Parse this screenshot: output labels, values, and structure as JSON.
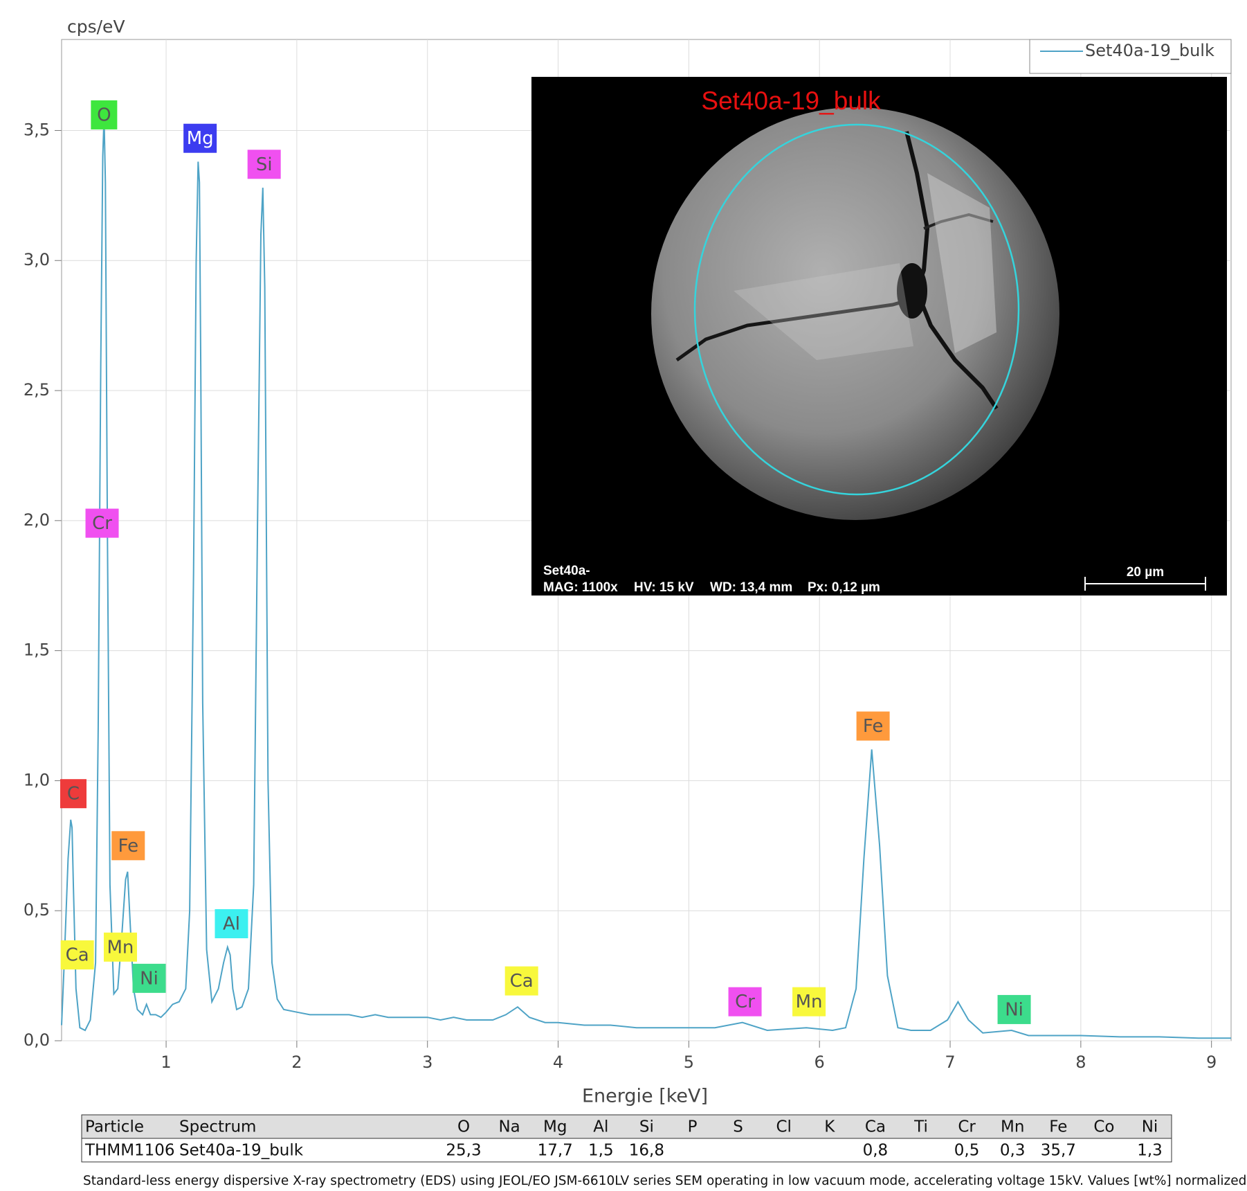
{
  "chart_data": {
    "type": "line",
    "ylabel": "cps/eV",
    "xlabel": "Energie [keV]",
    "xlim": [
      0.2,
      9.15
    ],
    "ylim": [
      0,
      3.85
    ],
    "xticks": [
      1,
      2,
      3,
      4,
      5,
      6,
      7,
      8,
      9
    ],
    "yticks": [
      {
        "value": 0,
        "label": "0,0"
      },
      {
        "value": 0.5,
        "label": "0,5"
      },
      {
        "value": 1,
        "label": "1,0"
      },
      {
        "value": 1.5,
        "label": "1,5"
      },
      {
        "value": 2,
        "label": "2,0"
      },
      {
        "value": 2.5,
        "label": "2,5"
      },
      {
        "value": 3,
        "label": "3,0"
      },
      {
        "value": 3.5,
        "label": "3,5"
      }
    ],
    "grid": true,
    "legend": "upper right",
    "x": [
      0.2,
      0.22,
      0.25,
      0.27,
      0.28,
      0.29,
      0.31,
      0.34,
      0.38,
      0.42,
      0.46,
      0.48,
      0.5,
      0.515,
      0.525,
      0.535,
      0.55,
      0.57,
      0.6,
      0.63,
      0.66,
      0.69,
      0.705,
      0.72,
      0.75,
      0.78,
      0.82,
      0.85,
      0.88,
      0.92,
      0.96,
      1.0,
      1.05,
      1.1,
      1.15,
      1.18,
      1.21,
      1.23,
      1.245,
      1.255,
      1.265,
      1.28,
      1.31,
      1.35,
      1.4,
      1.44,
      1.47,
      1.49,
      1.51,
      1.54,
      1.58,
      1.63,
      1.67,
      1.7,
      1.725,
      1.74,
      1.755,
      1.78,
      1.81,
      1.85,
      1.9,
      2.0,
      2.1,
      2.2,
      2.3,
      2.4,
      2.5,
      2.6,
      2.7,
      2.8,
      2.9,
      3.0,
      3.1,
      3.2,
      3.3,
      3.4,
      3.5,
      3.6,
      3.69,
      3.78,
      3.9,
      4.0,
      4.2,
      4.4,
      4.6,
      4.8,
      5.0,
      5.2,
      5.41,
      5.6,
      5.9,
      6.1,
      6.2,
      6.28,
      6.34,
      6.4,
      6.46,
      6.52,
      6.6,
      6.7,
      6.85,
      6.98,
      7.06,
      7.14,
      7.25,
      7.47,
      7.6,
      7.8,
      8.0,
      8.3,
      8.6,
      8.9,
      9.15
    ],
    "series": [
      {
        "name": "Set40a-19_bulk",
        "color": "#4ea3c6",
        "values": [
          0.06,
          0.3,
          0.7,
          0.85,
          0.82,
          0.6,
          0.2,
          0.05,
          0.04,
          0.08,
          0.3,
          1.2,
          2.6,
          3.4,
          3.55,
          3.3,
          2.0,
          0.6,
          0.18,
          0.2,
          0.4,
          0.62,
          0.65,
          0.5,
          0.2,
          0.12,
          0.1,
          0.14,
          0.1,
          0.1,
          0.09,
          0.11,
          0.14,
          0.15,
          0.2,
          0.5,
          1.8,
          3.0,
          3.38,
          3.3,
          2.6,
          1.3,
          0.35,
          0.15,
          0.2,
          0.3,
          0.36,
          0.33,
          0.2,
          0.12,
          0.13,
          0.2,
          0.6,
          2.0,
          3.1,
          3.28,
          2.9,
          1.0,
          0.3,
          0.16,
          0.12,
          0.11,
          0.1,
          0.1,
          0.1,
          0.1,
          0.09,
          0.1,
          0.09,
          0.09,
          0.09,
          0.09,
          0.08,
          0.09,
          0.08,
          0.08,
          0.08,
          0.1,
          0.13,
          0.09,
          0.07,
          0.07,
          0.06,
          0.06,
          0.05,
          0.05,
          0.05,
          0.05,
          0.07,
          0.04,
          0.05,
          0.04,
          0.05,
          0.2,
          0.7,
          1.12,
          0.75,
          0.25,
          0.05,
          0.04,
          0.04,
          0.08,
          0.15,
          0.08,
          0.03,
          0.04,
          0.02,
          0.02,
          0.02,
          0.015,
          0.015,
          0.01,
          0.01
        ]
      }
    ],
    "peak_labels": [
      {
        "text": "C",
        "x": 0.29,
        "y": 0.95,
        "color": "#ee3b3b"
      },
      {
        "text": "O",
        "x": 0.525,
        "y": 3.56,
        "color": "#3ee63e"
      },
      {
        "text": "Cr",
        "x": 0.51,
        "y": 1.99,
        "color": "#f050f0"
      },
      {
        "text": "Mg",
        "x": 1.26,
        "y": 3.47,
        "color": "#3c3cf0"
      },
      {
        "text": "Si",
        "x": 1.75,
        "y": 3.37,
        "color": "#f050f0"
      },
      {
        "text": "Fe",
        "x": 0.71,
        "y": 0.75,
        "color": "#ff9a3c"
      },
      {
        "text": "Ca",
        "x": 0.32,
        "y": 0.33,
        "color": "#f8f83c"
      },
      {
        "text": "Mn",
        "x": 0.65,
        "y": 0.36,
        "color": "#f8f83c"
      },
      {
        "text": "Ni",
        "x": 0.87,
        "y": 0.24,
        "color": "#3cdc8c"
      },
      {
        "text": "Al",
        "x": 1.5,
        "y": 0.45,
        "color": "#3cf0f0"
      },
      {
        "text": "Ca",
        "x": 3.72,
        "y": 0.23,
        "color": "#f8f83c"
      },
      {
        "text": "Cr",
        "x": 5.43,
        "y": 0.15,
        "color": "#f050f0"
      },
      {
        "text": "Mn",
        "x": 5.92,
        "y": 0.15,
        "color": "#f8f83c"
      },
      {
        "text": "Fe",
        "x": 6.41,
        "y": 1.21,
        "color": "#ff9a3c"
      },
      {
        "text": "Ni",
        "x": 7.49,
        "y": 0.12,
        "color": "#3cdc8c"
      }
    ]
  },
  "inset": {
    "title": "Set40a-19_bulk",
    "info": [
      "Set40a-",
      "MAG: 1100x",
      "HV: 15 kV",
      "WD: 13,4 mm",
      "Px: 0,12 µm"
    ],
    "scale_bar": "20 µm"
  },
  "table": {
    "columns": [
      "Particle",
      "Spectrum",
      "O",
      "Na",
      "Mg",
      "Al",
      "Si",
      "P",
      "S",
      "Cl",
      "K",
      "Ca",
      "Ti",
      "Cr",
      "Mn",
      "Fe",
      "Co",
      "Ni"
    ],
    "rows": [
      [
        "THMM1106",
        "Set40a-19_bulk",
        "25,3",
        null,
        "17,7",
        "1,5",
        "16,8",
        null,
        null,
        null,
        null,
        "0,8",
        null,
        "0,5",
        "0,3",
        "35,7",
        null,
        "1,3"
      ]
    ]
  },
  "caption": "Standard-less energy dispersive X-ray spectrometry (EDS) using JEOL/EO JSM-6610LV series SEM operating in low vacuum mode, accelerating voltage 15kV. Values [wt%] normalized."
}
